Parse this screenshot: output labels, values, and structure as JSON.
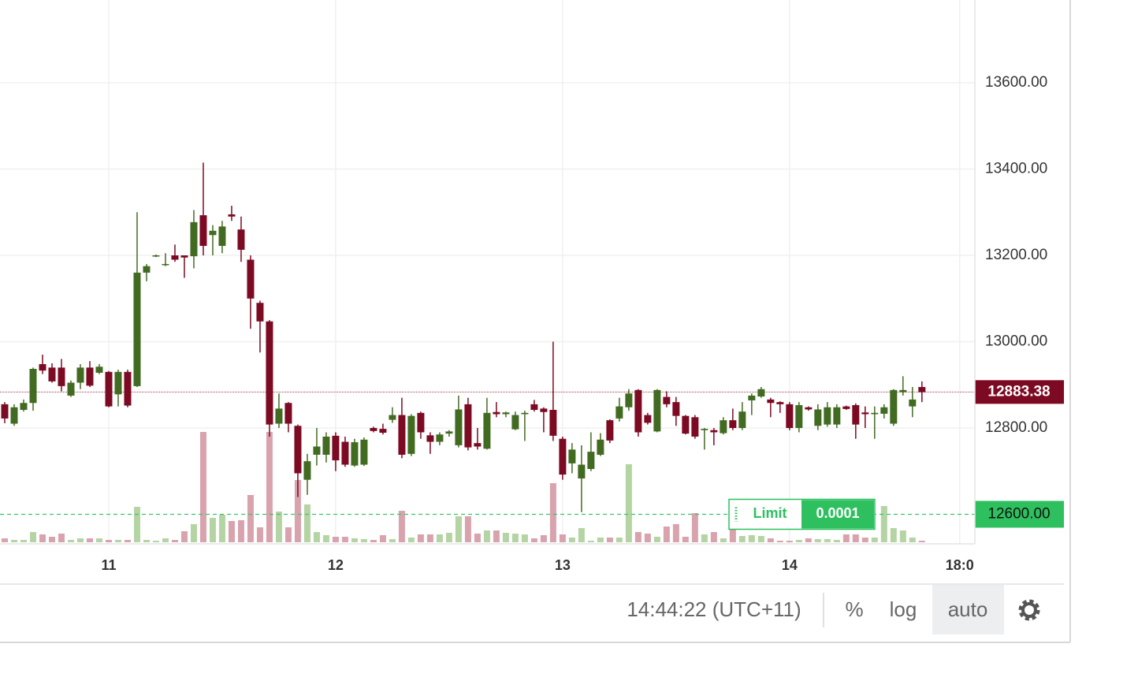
{
  "chart_data": {
    "type": "candlestick",
    "categories": [
      null,
      null,
      null,
      null,
      null,
      null,
      null,
      null,
      null,
      null,
      null,
      null,
      null,
      null,
      null,
      null,
      null,
      null,
      null,
      null,
      null,
      null,
      null,
      null,
      null,
      null,
      null,
      null,
      null,
      null,
      null,
      null,
      null,
      null,
      null,
      null,
      null,
      null,
      null,
      null,
      null,
      null,
      null,
      null,
      null,
      null,
      null,
      null,
      null,
      null,
      null,
      null,
      null,
      null,
      null,
      null,
      null,
      null,
      null,
      null,
      null,
      null,
      null,
      null,
      null,
      null,
      null,
      null,
      null,
      null,
      null,
      null,
      null,
      null,
      null,
      null,
      null,
      null,
      null,
      null,
      null,
      null,
      null,
      null,
      null,
      null,
      null,
      null,
      null,
      null,
      null,
      null,
      null,
      null,
      null,
      null,
      null,
      null
    ],
    "open": [
      12855,
      12810,
      12842,
      12858,
      12948,
      12940,
      12940,
      12875,
      12905,
      12940,
      12928,
      12930,
      12878,
      12930,
      12897,
      13160,
      13198,
      13178,
      13200,
      13200,
      13198,
      13293,
      13247,
      13222,
      13295,
      13260,
      13190,
      13090,
      13047,
      12810,
      12858,
      12805,
      12680,
      12738,
      12738,
      12782,
      12768,
      12713,
      12715,
      12800,
      12798,
      12819,
      12830,
      12740,
      12835,
      12783,
      12768,
      12787,
      12760,
      12855,
      12765,
      12752,
      12837,
      12832,
      12797,
      12832,
      12855,
      12845,
      12842,
      12775,
      12718,
      12683,
      12705,
      12738,
      12818,
      12822,
      12848,
      12888,
      12830,
      12792,
      12872,
      12860,
      12828,
      12825,
      12795,
      12795,
      12788,
      12818,
      12800,
      12864,
      12873,
      12866,
      12860,
      12855,
      12800,
      12848,
      12805,
      12808,
      12808,
      12850,
      12853,
      12836,
      12832,
      12833,
      12810,
      12883,
      12850,
      12895
    ],
    "high": [
      12860,
      12855,
      12866,
      12940,
      12970,
      12950,
      12960,
      12910,
      12948,
      12955,
      12948,
      12932,
      12935,
      12935,
      13300,
      13180,
      13202,
      13205,
      13225,
      13200,
      13305,
      13415,
      13270,
      13280,
      13315,
      13290,
      13200,
      13095,
      13050,
      12880,
      12860,
      12808,
      12740,
      12800,
      12790,
      12790,
      12780,
      12775,
      12778,
      12803,
      12810,
      12848,
      12870,
      12832,
      12838,
      12790,
      12790,
      12795,
      12875,
      12870,
      12800,
      12870,
      12860,
      12838,
      12838,
      12840,
      12865,
      12848,
      13000,
      12780,
      12765,
      12760,
      12790,
      12788,
      12820,
      12870,
      12890,
      12890,
      12835,
      12890,
      12885,
      12872,
      12830,
      12830,
      12800,
      12800,
      12825,
      12845,
      12860,
      12880,
      12895,
      12870,
      12862,
      12860,
      12860,
      12850,
      12855,
      12860,
      12855,
      12852,
      12857,
      12850,
      12850,
      12855,
      12890,
      12920,
      12895,
      12908
    ],
    "low": [
      12811,
      12805,
      12838,
      12840,
      12925,
      12905,
      12885,
      12872,
      12890,
      12895,
      12925,
      12848,
      12850,
      12848,
      12895,
      13140,
      13196,
      13175,
      13185,
      13148,
      13170,
      13200,
      13200,
      13205,
      13280,
      13185,
      13030,
      12975,
      12780,
      12800,
      12790,
      12640,
      12645,
      12713,
      12720,
      12700,
      12710,
      12710,
      12712,
      12790,
      12785,
      12812,
      12730,
      12735,
      12775,
      12740,
      12760,
      12780,
      12755,
      12748,
      12750,
      12750,
      12825,
      12825,
      12795,
      12770,
      12838,
      12790,
      12770,
      12680,
      12695,
      12605,
      12700,
      12735,
      12765,
      12815,
      12840,
      12780,
      12808,
      12790,
      12848,
      12805,
      12785,
      12775,
      12750,
      12760,
      12785,
      12795,
      12795,
      12830,
      12870,
      12825,
      12835,
      12795,
      12790,
      12840,
      12795,
      12803,
      12800,
      12842,
      12775,
      12800,
      12775,
      12822,
      12805,
      12875,
      12825,
      12860
    ],
    "close": [
      12822,
      12848,
      12858,
      12937,
      12933,
      12908,
      12897,
      12905,
      12940,
      12898,
      12942,
      12850,
      12930,
      12852,
      13160,
      13175,
      13200,
      13180,
      13190,
      13195,
      13277,
      13222,
      13257,
      13267,
      13290,
      13213,
      13100,
      13047,
      12808,
      12845,
      12810,
      12695,
      12723,
      12757,
      12780,
      12725,
      12715,
      12767,
      12773,
      12793,
      12789,
      12830,
      12738,
      12828,
      12790,
      12768,
      12785,
      12792,
      12843,
      12755,
      12757,
      12835,
      12832,
      12836,
      12830,
      12835,
      12842,
      12837,
      12782,
      12692,
      12750,
      12715,
      12745,
      12773,
      12771,
      12850,
      12880,
      12790,
      12812,
      12888,
      12855,
      12828,
      12787,
      12780,
      12798,
      12790,
      12818,
      12800,
      12838,
      12875,
      12890,
      12858,
      12855,
      12800,
      12853,
      12843,
      12843,
      12848,
      12848,
      12844,
      12808,
      12832,
      12835,
      12848,
      12888,
      12888,
      12866,
      12883
    ],
    "volume": [
      5,
      3,
      3,
      13,
      10,
      7,
      11,
      3,
      5,
      5,
      5,
      3,
      3,
      3,
      45,
      3,
      2,
      5,
      3,
      14,
      23,
      140,
      31,
      35,
      27,
      28,
      60,
      19,
      140,
      39,
      19,
      79,
      48,
      13,
      9,
      7,
      7,
      5,
      4,
      3,
      9,
      4,
      40,
      6,
      10,
      10,
      10,
      12,
      33,
      33,
      11,
      15,
      15,
      12,
      11,
      10,
      5,
      9,
      75,
      10,
      6,
      18,
      2,
      6,
      6,
      6,
      99,
      13,
      11,
      7,
      20,
      23,
      7,
      37,
      10,
      13,
      5,
      20,
      8,
      9,
      8,
      5,
      2,
      2,
      3,
      5,
      4,
      4,
      3,
      10,
      10,
      6,
      6,
      46,
      18,
      15,
      6,
      2
    ],
    "up_color": "#426b22",
    "down_color": "#7d0a23",
    "up_volume_color": "#b5d4a3",
    "down_volume_color": "#d9a3ae",
    "xlim": [
      -0.5,
      102.6
    ],
    "xticks": [
      {
        "value": 11,
        "label": "11"
      },
      {
        "value": 35,
        "label": "12"
      },
      {
        "value": 59,
        "label": "13"
      },
      {
        "value": 83,
        "label": "14"
      },
      {
        "value": 101,
        "label": "18:0"
      }
    ],
    "ylim": [
      12531.5,
      13791.8
    ],
    "yticks": [
      {
        "value": 12800,
        "label": "12800.00"
      },
      {
        "value": 13000,
        "label": "13000.00"
      },
      {
        "value": 13200,
        "label": "13200.00"
      },
      {
        "value": 13400,
        "label": "13400.00"
      },
      {
        "value": 13600,
        "label": "13600.00"
      }
    ],
    "y2lim": [
      0,
      200
    ],
    "grid": true,
    "last_price": 12883.38,
    "limit_line": {
      "value": 12600,
      "label": "12600.00"
    },
    "order": {
      "type": "Limit",
      "amount": "0.0001"
    }
  },
  "toolbar": {
    "time": "14:44:22 (UTC+11)",
    "percent": "%",
    "log": "log",
    "auto": "auto"
  }
}
